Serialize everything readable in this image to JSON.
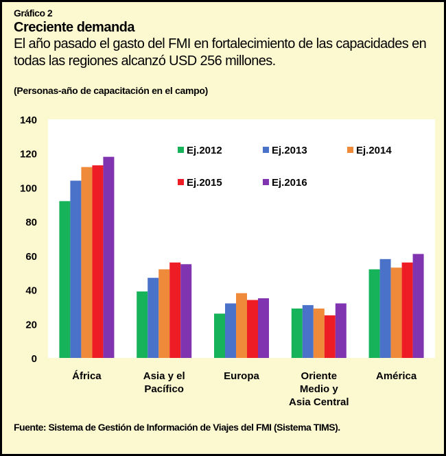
{
  "header": {
    "figure_label": "Gráfico 2",
    "title": "Creciente demanda",
    "subtitle": "El año pasado el gasto del FMI en fortalecimiento de las capacidades en todas las regiones alcanzó USD 256 millones.",
    "unit_note": "(Personas-año de capacitación  en el campo)"
  },
  "source": "Fuente: Sistema de Gestión de Información de Viajes del FMI (Sistema TIMS).",
  "colors": {
    "background": "#fcf8d0",
    "plot_background": "#ffffff",
    "text": "#000000"
  },
  "chart_data": {
    "type": "bar",
    "title": "Creciente demanda",
    "ylim": [
      0,
      140
    ],
    "yticks": [
      0,
      20,
      40,
      60,
      80,
      100,
      120,
      140
    ],
    "grid": false,
    "legend_position": "top-right",
    "categories": [
      "África",
      "Asia y el Pacífico",
      "Europa",
      "Oriente Medio y Asia Central",
      "América"
    ],
    "category_lines": [
      [
        "África"
      ],
      [
        "Asia y el",
        "Pacífico"
      ],
      [
        "Europa"
      ],
      [
        "Oriente",
        "Medio y",
        "Asia Central"
      ],
      [
        "América"
      ]
    ],
    "series": [
      {
        "name": "Ej.2012",
        "color": "#16b35a",
        "values": [
          92,
          39,
          26,
          29,
          52
        ]
      },
      {
        "name": "Ej.2013",
        "color": "#4a72c9",
        "values": [
          104,
          47,
          32,
          31,
          58
        ]
      },
      {
        "name": "Ej.2014",
        "color": "#ef8a3a",
        "values": [
          112,
          52,
          38,
          29,
          53
        ]
      },
      {
        "name": "Ej.2015",
        "color": "#ee1c25",
        "values": [
          113,
          56,
          34,
          25,
          56
        ]
      },
      {
        "name": "Ej.2016",
        "color": "#8034b0",
        "values": [
          118,
          55,
          35,
          32,
          61
        ]
      }
    ]
  }
}
